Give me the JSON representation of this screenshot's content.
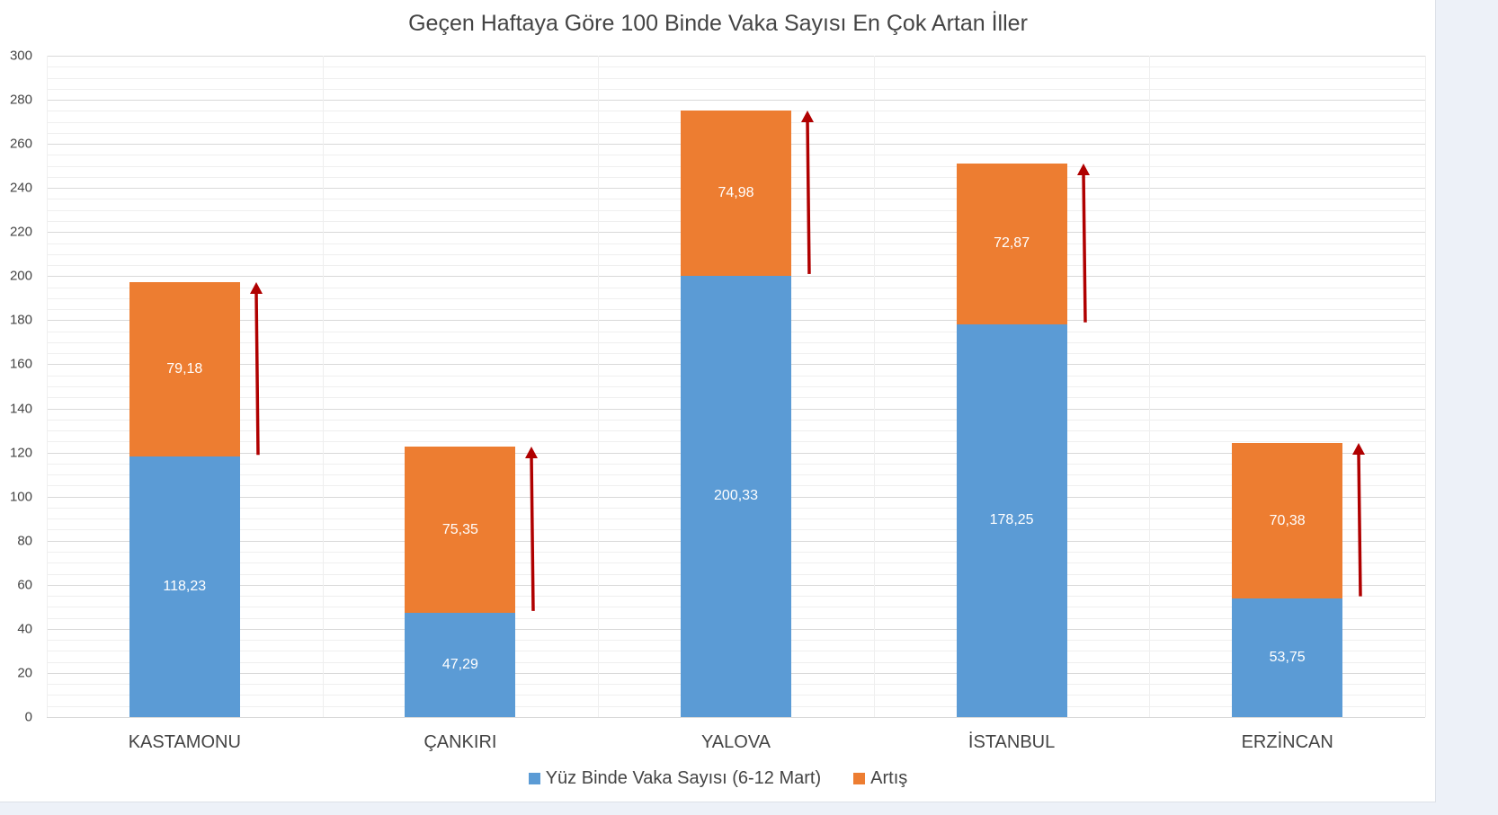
{
  "chart_data": {
    "type": "bar",
    "stacked": true,
    "title": "Geçen Haftaya Göre 100 Binde Vaka Sayısı En Çok Artan İller",
    "xlabel": "",
    "ylabel": "",
    "ylim": [
      0,
      300
    ],
    "yticks": [
      0,
      20,
      40,
      60,
      80,
      100,
      120,
      140,
      160,
      180,
      200,
      220,
      240,
      260,
      280,
      300
    ],
    "grid": true,
    "legend_position": "bottom",
    "categories": [
      "KASTAMONU",
      "ÇANKIRI",
      "YALOVA",
      "İSTANBUL",
      "ERZİNCAN"
    ],
    "series": [
      {
        "name": "Yüz Binde Vaka Sayısı (6-12 Mart)",
        "color": "#5b9bd5",
        "values": [
          118.23,
          47.29,
          200.33,
          178.25,
          53.75
        ],
        "labels": [
          "118,23",
          "47,29",
          "200,33",
          "178,25",
          "53,75"
        ]
      },
      {
        "name": "Artış",
        "color": "#ed7d31",
        "values": [
          79.18,
          75.35,
          74.98,
          72.87,
          70.38
        ],
        "labels": [
          "79,18",
          "75,35",
          "74,98",
          "72,87",
          "70,38"
        ]
      }
    ],
    "annotations": [
      {
        "type": "arrow",
        "direction": "up",
        "color": "#b00000",
        "note": "red up-arrow beside each bar's increase segment"
      }
    ]
  },
  "ytick_labels": [
    "0",
    "20",
    "40",
    "60",
    "80",
    "100",
    "120",
    "140",
    "160",
    "180",
    "200",
    "220",
    "240",
    "260",
    "280",
    "300"
  ],
  "colors": {
    "series1": "#5b9bd5",
    "series2": "#ed7d31",
    "arrow": "#b00000",
    "background": "#edf1f8"
  }
}
